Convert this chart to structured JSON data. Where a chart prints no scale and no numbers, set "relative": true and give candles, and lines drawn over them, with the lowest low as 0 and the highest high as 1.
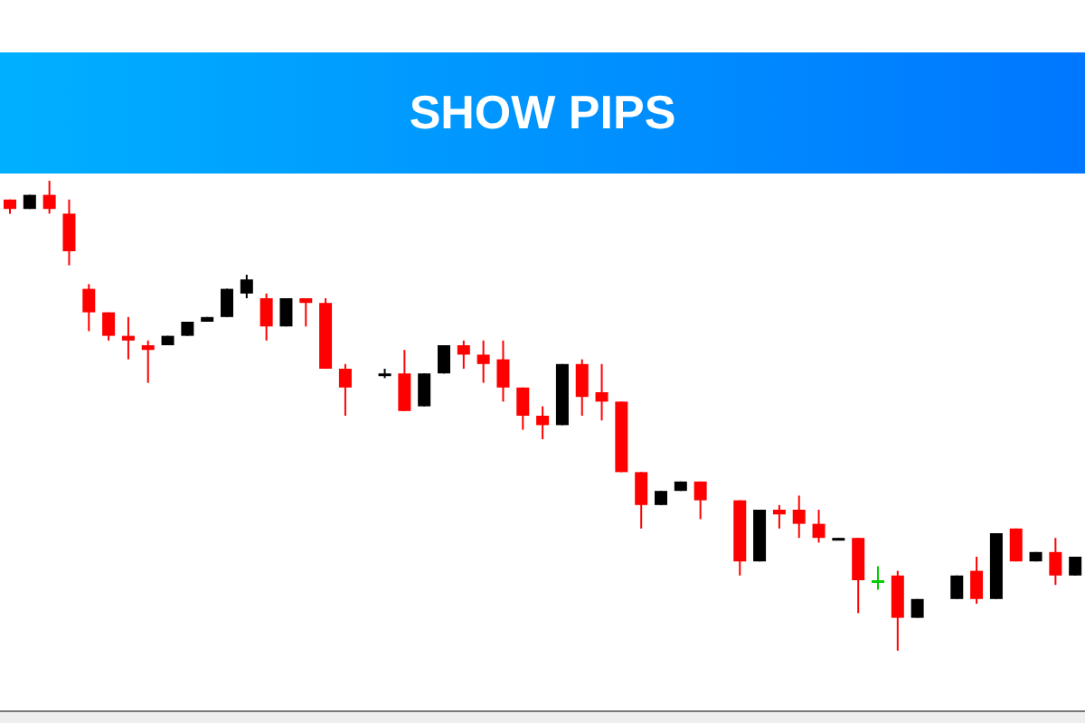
{
  "chart_data": {
    "type": "candlestick",
    "title": "SHOW PIPS",
    "relative": true,
    "categories": [
      null,
      null,
      null,
      null,
      null,
      null,
      null,
      null,
      null,
      null,
      null,
      null,
      null,
      null,
      null,
      null,
      null,
      null,
      null,
      null,
      null,
      null,
      null,
      null,
      null,
      null,
      null,
      null,
      null,
      null,
      null,
      null,
      null,
      null,
      null,
      null,
      null,
      null,
      null,
      null,
      null,
      null,
      null,
      null,
      null,
      null,
      null,
      null,
      null,
      null,
      null,
      null,
      null,
      null,
      null
    ],
    "ohlc": [
      [
        0.96,
        0.96,
        0.93,
        0.94
      ],
      [
        0.94,
        0.97,
        0.94,
        0.97
      ],
      [
        0.97,
        1.0,
        0.93,
        0.94
      ],
      [
        0.93,
        0.96,
        0.82,
        0.85
      ],
      [
        0.77,
        0.78,
        0.68,
        0.72
      ],
      [
        0.72,
        0.72,
        0.66,
        0.67
      ],
      [
        0.67,
        0.71,
        0.62,
        0.66
      ],
      [
        0.65,
        0.66,
        0.57,
        0.64
      ],
      [
        0.65,
        0.67,
        0.65,
        0.67
      ],
      [
        0.67,
        0.7,
        0.67,
        0.7
      ],
      [
        0.7,
        0.71,
        0.7,
        0.71
      ],
      [
        0.71,
        0.77,
        0.71,
        0.77
      ],
      [
        0.76,
        0.8,
        0.75,
        0.79
      ],
      [
        0.75,
        0.76,
        0.66,
        0.69
      ],
      [
        0.69,
        0.75,
        0.69,
        0.75
      ],
      [
        0.75,
        0.75,
        0.69,
        0.74
      ],
      [
        0.74,
        0.75,
        0.6,
        0.6
      ],
      [
        0.6,
        0.61,
        0.5,
        0.56
      ],
      null,
      [
        0.59,
        0.6,
        0.58,
        0.59
      ],
      [
        0.59,
        0.64,
        0.51,
        0.51
      ],
      [
        0.52,
        0.59,
        0.52,
        0.59
      ],
      [
        0.59,
        0.65,
        0.59,
        0.65
      ],
      [
        0.65,
        0.66,
        0.6,
        0.63
      ],
      [
        0.63,
        0.66,
        0.57,
        0.61
      ],
      [
        0.62,
        0.66,
        0.53,
        0.56
      ],
      [
        0.56,
        0.56,
        0.47,
        0.5
      ],
      [
        0.5,
        0.52,
        0.45,
        0.48
      ],
      [
        0.48,
        0.61,
        0.48,
        0.61
      ],
      [
        0.61,
        0.62,
        0.5,
        0.54
      ],
      [
        0.55,
        0.61,
        0.49,
        0.53
      ],
      [
        0.53,
        0.53,
        0.38,
        0.38
      ],
      [
        0.38,
        0.38,
        0.26,
        0.31
      ],
      [
        0.31,
        0.34,
        0.31,
        0.34
      ],
      [
        0.34,
        0.36,
        0.34,
        0.36
      ],
      [
        0.36,
        0.36,
        0.28,
        0.32
      ],
      null,
      [
        0.32,
        0.32,
        0.16,
        0.19
      ],
      [
        0.19,
        0.3,
        0.19,
        0.3
      ],
      [
        0.3,
        0.31,
        0.26,
        0.29
      ],
      [
        0.3,
        0.33,
        0.24,
        0.27
      ],
      [
        0.27,
        0.3,
        0.23,
        0.24
      ],
      [
        0.235,
        0.24,
        0.235,
        0.24
      ],
      [
        0.24,
        0.24,
        0.08,
        0.15
      ],
      [
        0.15,
        0.18,
        0.13,
        0.15
      ],
      [
        0.16,
        0.17,
        0,
        0.07
      ],
      [
        0.07,
        0.11,
        0.07,
        0.11
      ],
      null,
      [
        0.11,
        0.16,
        0.11,
        0.16
      ],
      [
        0.17,
        0.2,
        0.1,
        0.11
      ],
      [
        0.11,
        0.25,
        0.11,
        0.25
      ],
      [
        0.26,
        0.26,
        0.19,
        0.19
      ],
      [
        0.19,
        0.21,
        0.19,
        0.21
      ],
      [
        0.21,
        0.24,
        0.14,
        0.16
      ],
      [
        0.16,
        0.2,
        0.16,
        0.2
      ]
    ],
    "colors": [
      "#ff0000",
      "#000000",
      "#ff0000",
      "#ff0000",
      "#ff0000",
      "#ff0000",
      "#ff0000",
      "#ff0000",
      "#000000",
      "#000000",
      "#000000",
      "#000000",
      "#000000",
      "#ff0000",
      "#000000",
      "#ff0000",
      "#ff0000",
      "#ff0000",
      "#000000",
      "#000000",
      "#ff0000",
      "#000000",
      "#000000",
      "#ff0000",
      "#ff0000",
      "#ff0000",
      "#ff0000",
      "#ff0000",
      "#000000",
      "#ff0000",
      "#ff0000",
      "#ff0000",
      "#ff0000",
      "#000000",
      "#000000",
      "#ff0000",
      "#000000",
      "#ff0000",
      "#000000",
      "#ff0000",
      "#ff0000",
      "#ff0000",
      "#000000",
      "#ff0000",
      "#00cc00",
      "#ff0000",
      "#000000",
      "#000000",
      "#000000",
      "#ff0000",
      "#000000",
      "#ff0000",
      "#000000",
      "#ff0000",
      "#000000"
    ]
  }
}
